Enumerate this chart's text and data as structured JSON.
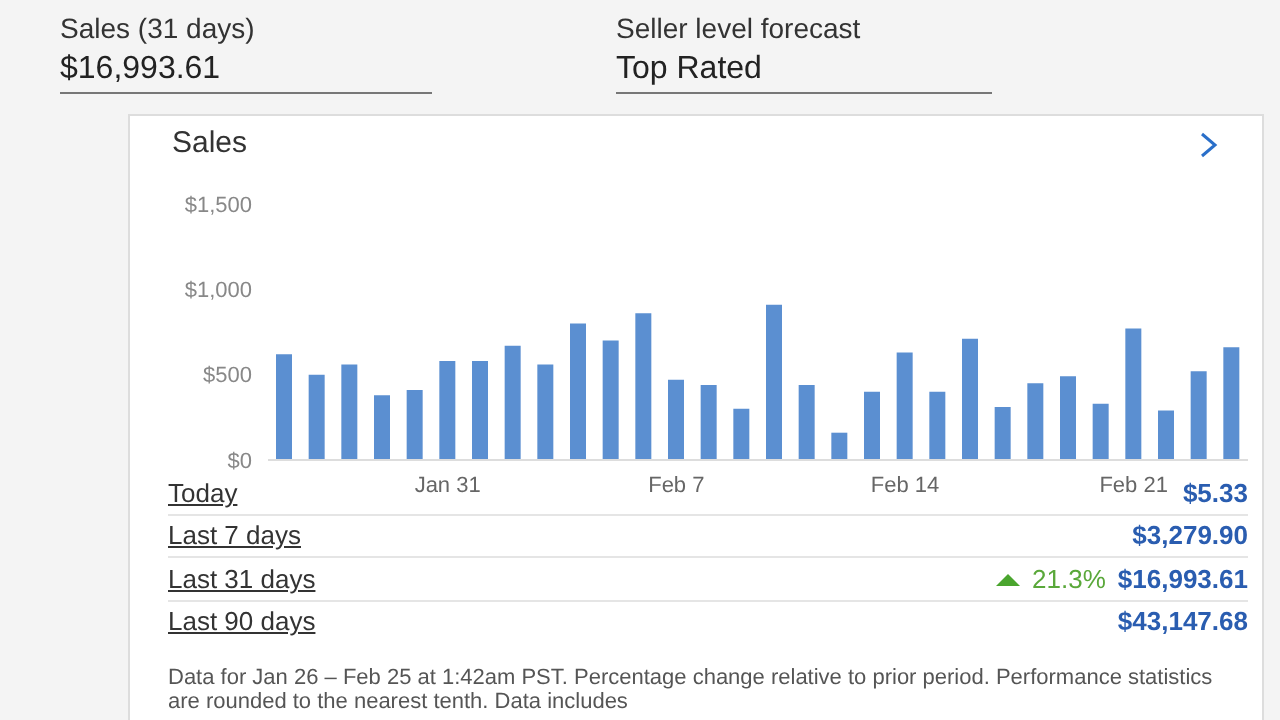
{
  "chart_data": {
    "type": "bar",
    "title": "Sales",
    "categories": [
      null,
      null,
      null,
      null,
      null,
      "Jan 31",
      null,
      null,
      null,
      null,
      null,
      null,
      "Feb 7",
      null,
      null,
      null,
      null,
      null,
      null,
      "Feb 14",
      null,
      null,
      null,
      null,
      null,
      null,
      "Feb 21",
      null,
      null,
      null
    ],
    "series": [
      {
        "color": "#5b8fd1",
        "values": [
          620,
          500,
          560,
          380,
          410,
          580,
          580,
          670,
          560,
          800,
          700,
          860,
          470,
          440,
          300,
          910,
          440,
          160,
          400,
          630,
          400,
          710,
          310,
          450,
          490,
          330,
          770,
          290,
          520,
          660
        ]
      }
    ],
    "ylim": [
      0,
      1500
    ],
    "yticks": [
      {
        "value": 0,
        "label": "$0"
      },
      {
        "value": 500,
        "label": "$500"
      },
      {
        "value": 1000,
        "label": "$1,000"
      },
      {
        "value": 1500,
        "label": "$1,500"
      }
    ],
    "grid": false,
    "legend": false,
    "annotations": [
      "Sales (31 days)",
      "$16,993.61",
      "Seller level forecast",
      "Top Rated",
      "Today",
      "$5.33",
      "Last 7 days",
      "$3,279.90",
      "Last 31 days",
      "21.3%",
      "$16,993.61",
      "Last 90 days",
      "$43,147.68",
      "Data for Jan 26 – Feb 25 at 1:42am PST. Percentage change relative to prior period. Performance statistics are rounded to the nearest tenth. Data includes"
    ]
  }
}
